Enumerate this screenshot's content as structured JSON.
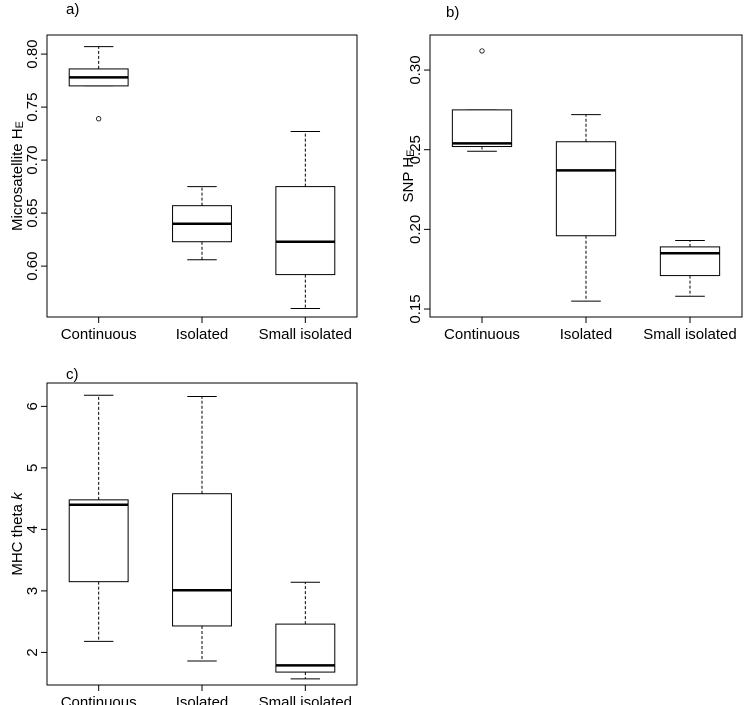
{
  "chart_data": [
    {
      "type": "box",
      "panel": "a)",
      "ylabel": "Microsatellite H",
      "ylabel_sub": "E",
      "categories": [
        "Continuous",
        "Isolated",
        "Small isolated"
      ],
      "yticks": [
        "0.60",
        "0.65",
        "0.70",
        "0.75",
        "0.80"
      ],
      "ylim": [
        0.552,
        0.818
      ],
      "boxes": [
        {
          "whisker_low": 0.77,
          "q1": 0.77,
          "median": 0.778,
          "q3": 0.786,
          "whisker_high": 0.807,
          "outliers": [
            0.739
          ]
        },
        {
          "whisker_low": 0.606,
          "q1": 0.623,
          "median": 0.64,
          "q3": 0.657,
          "whisker_high": 0.675,
          "outliers": []
        },
        {
          "whisker_low": 0.56,
          "q1": 0.592,
          "median": 0.623,
          "q3": 0.675,
          "whisker_high": 0.727,
          "outliers": []
        }
      ]
    },
    {
      "type": "box",
      "panel": "b)",
      "ylabel": "SNP H",
      "ylabel_sub": "E",
      "categories": [
        "Continuous",
        "Isolated",
        "Small isolated"
      ],
      "yticks": [
        "0.15",
        "0.20",
        "0.25",
        "0.30"
      ],
      "ylim": [
        0.145,
        0.322
      ],
      "boxes": [
        {
          "whisker_low": 0.249,
          "q1": 0.252,
          "median": 0.254,
          "q3": 0.275,
          "whisker_high": 0.275,
          "outliers": [
            0.312
          ]
        },
        {
          "whisker_low": 0.155,
          "q1": 0.196,
          "median": 0.237,
          "q3": 0.255,
          "whisker_high": 0.272,
          "outliers": []
        },
        {
          "whisker_low": 0.158,
          "q1": 0.171,
          "median": 0.185,
          "q3": 0.189,
          "whisker_high": 0.193,
          "outliers": []
        }
      ]
    },
    {
      "type": "box",
      "panel": "c)",
      "ylabel": "MHC theta ",
      "ylabel_italic": "k",
      "categories": [
        "Continuous",
        "Isolated",
        "Small isolated"
      ],
      "yticks": [
        "2",
        "3",
        "4",
        "5",
        "6"
      ],
      "ylim": [
        1.47,
        6.38
      ],
      "boxes": [
        {
          "whisker_low": 2.18,
          "q1": 3.15,
          "median": 4.4,
          "q3": 4.48,
          "whisker_high": 6.18,
          "outliers": []
        },
        {
          "whisker_low": 1.86,
          "q1": 2.43,
          "median": 3.01,
          "q3": 4.58,
          "whisker_high": 6.16,
          "outliers": []
        },
        {
          "whisker_low": 1.57,
          "q1": 1.68,
          "median": 1.79,
          "q3": 2.46,
          "whisker_high": 3.14,
          "outliers": []
        }
      ]
    }
  ]
}
